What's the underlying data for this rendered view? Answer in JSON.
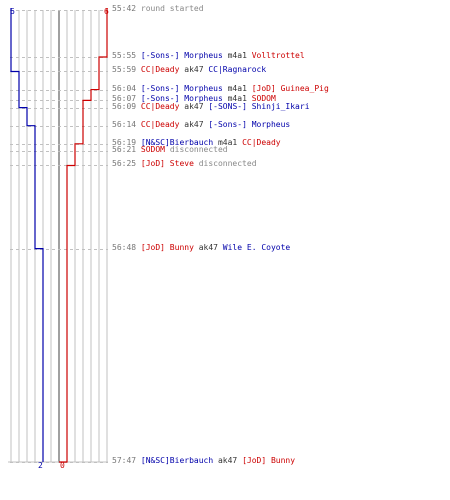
{
  "colors": {
    "blue": "#0000aa",
    "red": "#cc0000",
    "grid": "#c0c0c0",
    "center": "#808080",
    "time": "#777777",
    "text": "#333333",
    "notice": "#888888"
  },
  "chart_data": {
    "type": "step-line",
    "start_time": "55:42",
    "series": [
      {
        "team": "blue",
        "start_value": 6,
        "end_value": 2,
        "steps": [
          {
            "time": "55:42",
            "value": 6
          },
          {
            "time": "55:59",
            "value": 5
          },
          {
            "time": "56:09",
            "value": 4
          },
          {
            "time": "56:14",
            "value": 3
          },
          {
            "time": "56:48",
            "value": 2
          }
        ]
      },
      {
        "team": "red",
        "start_value": 6,
        "end_value": 0,
        "steps": [
          {
            "time": "55:42",
            "value": 6
          },
          {
            "time": "55:55",
            "value": 5
          },
          {
            "time": "56:04",
            "value": 4
          },
          {
            "time": "56:07",
            "value": 3
          },
          {
            "time": "56:19",
            "value": 2
          },
          {
            "time": "56:25",
            "value": 1
          },
          {
            "time": "57:47",
            "value": 0
          }
        ]
      }
    ]
  },
  "events": [
    {
      "time": "55:42",
      "parts": [
        {
          "t": " round started",
          "c": "notice"
        }
      ]
    },
    {
      "time": "55:55",
      "parts": [
        {
          "t": " [-Sons-] Morpheus",
          "c": "blue"
        },
        {
          "t": " m4a1 ",
          "c": "text"
        },
        {
          "t": "Volltrottel",
          "c": "red"
        }
      ]
    },
    {
      "time": "55:59",
      "parts": [
        {
          "t": " CC|Deady",
          "c": "red"
        },
        {
          "t": " ak47 ",
          "c": "text"
        },
        {
          "t": "CC|Ragnarock",
          "c": "blue"
        }
      ]
    },
    {
      "time": "56:04",
      "parts": [
        {
          "t": " [-Sons-] Morpheus",
          "c": "blue"
        },
        {
          "t": " m4a1 ",
          "c": "text"
        },
        {
          "t": "[JoD] Guinea_Pig",
          "c": "red"
        }
      ]
    },
    {
      "time": "56:07",
      "parts": [
        {
          "t": " [-Sons-] Morpheus",
          "c": "blue"
        },
        {
          "t": " m4a1 ",
          "c": "text"
        },
        {
          "t": "SODOM",
          "c": "red"
        }
      ]
    },
    {
      "time": "56:09",
      "parts": [
        {
          "t": " CC|Deady",
          "c": "red"
        },
        {
          "t": " ak47 ",
          "c": "text"
        },
        {
          "t": "[-SONS-] Shinji_Ikari",
          "c": "blue"
        }
      ]
    },
    {
      "time": "56:14",
      "parts": [
        {
          "t": " CC|Deady",
          "c": "red"
        },
        {
          "t": " ak47 ",
          "c": "text"
        },
        {
          "t": "[-Sons-] Morpheus",
          "c": "blue"
        }
      ]
    },
    {
      "time": "56:19",
      "parts": [
        {
          "t": " [N&SC]Bierbauch",
          "c": "blue"
        },
        {
          "t": " m4a1 ",
          "c": "text"
        },
        {
          "t": "CC|Deady",
          "c": "red"
        }
      ]
    },
    {
      "time": "56:21",
      "parts": [
        {
          "t": " SODOM",
          "c": "red"
        },
        {
          "t": " disconnected",
          "c": "notice"
        }
      ]
    },
    {
      "time": "56:25",
      "parts": [
        {
          "t": " [JoD] Steve",
          "c": "red"
        },
        {
          "t": " disconnected",
          "c": "notice"
        }
      ]
    },
    {
      "time": "56:48",
      "parts": [
        {
          "t": " [JoD] Bunny",
          "c": "red"
        },
        {
          "t": " ak47 ",
          "c": "text"
        },
        {
          "t": "Wile E. Coyote",
          "c": "blue"
        }
      ]
    },
    {
      "time": "57:47",
      "parts": [
        {
          "t": " [N&SC]Bierbauch",
          "c": "blue"
        },
        {
          "t": " ak47 ",
          "c": "text"
        },
        {
          "t": "[JoD] Bunny",
          "c": "red"
        }
      ]
    }
  ]
}
